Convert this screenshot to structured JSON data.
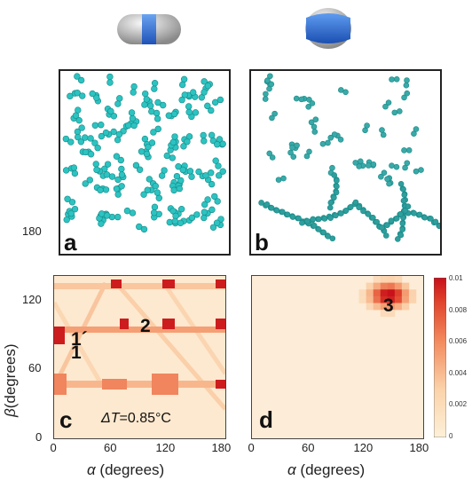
{
  "panels": {
    "a": "a",
    "b": "b",
    "c": "c",
    "d": "d"
  },
  "heatmap_c": {
    "labels": {
      "p1": "1",
      "p1prime": "1´",
      "p2": "2"
    },
    "delta_t_symbol": "ΔT",
    "delta_t_value": "=0.85°C"
  },
  "heatmap_d": {
    "labels": {
      "p3": "3"
    }
  },
  "axes": {
    "x_symbol": "α",
    "x_unit": " (degrees)",
    "y_symbol": "β",
    "y_unit": "(degrees)",
    "x_ticks_c": [
      "0",
      "60",
      "120",
      "180"
    ],
    "x_ticks_d": [
      "0",
      "60",
      "120",
      "180"
    ],
    "y_ticks": [
      "0",
      "60",
      "120",
      "180"
    ]
  },
  "colorbar": {
    "ticks": [
      "0.01",
      "0.008",
      "0.006",
      "0.004",
      "0.002",
      "0"
    ]
  },
  "colors": {
    "particle": "#2cc3c1",
    "particle_dark": "#1a8f8d",
    "heat_bg": "#fde9cf",
    "heat_mid": "#f6a47f",
    "heat_hi": "#d9151a",
    "blue": "#2a6fd6",
    "gray": "#b9b9b9"
  }
}
